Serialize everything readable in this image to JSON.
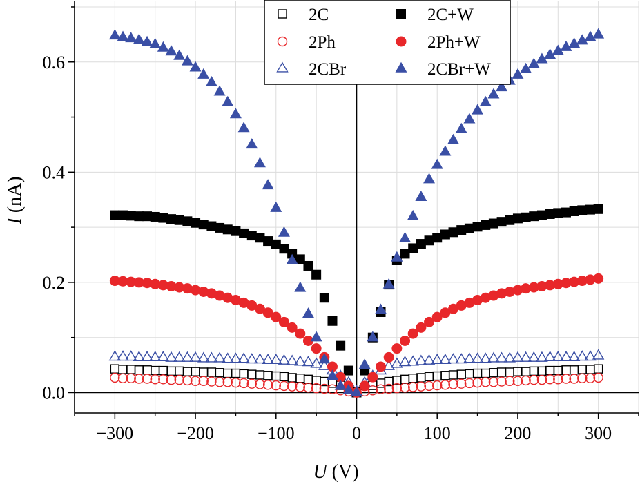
{
  "chart_data": {
    "type": "scatter",
    "title": "",
    "xlabel": {
      "symbol": "U",
      "unit": "(V)"
    },
    "ylabel": {
      "symbol": "I",
      "unit": "(nA)"
    },
    "xlim": [
      -350,
      350
    ],
    "ylim": [
      -0.037,
      0.71
    ],
    "xticks": [
      -300,
      -200,
      -100,
      0,
      100,
      200,
      300
    ],
    "xtick_labels": [
      "−300",
      "−200",
      "−100",
      "0",
      "100",
      "200",
      "300"
    ],
    "yticks": [
      0.0,
      0.2,
      0.4,
      0.6
    ],
    "ytick_labels": [
      "0.0",
      "0.2",
      "0.4",
      "0.6"
    ],
    "grid": true,
    "zero_lines": true,
    "legend_placement": "top-center",
    "series": [
      {
        "name": "2C",
        "marker": "square",
        "filled": false,
        "color": "#000000",
        "x": [
          -300,
          -290,
          -280,
          -270,
          -260,
          -250,
          -240,
          -230,
          -220,
          -210,
          -200,
          -190,
          -180,
          -170,
          -160,
          -150,
          -140,
          -130,
          -120,
          -110,
          -100,
          -90,
          -80,
          -70,
          -60,
          -50,
          -40,
          -30,
          -20,
          -10,
          0,
          10,
          20,
          30,
          40,
          50,
          60,
          70,
          80,
          90,
          100,
          110,
          120,
          130,
          140,
          150,
          160,
          170,
          180,
          190,
          200,
          210,
          220,
          230,
          240,
          250,
          260,
          270,
          280,
          290,
          300
        ],
        "y": [
          0.043,
          0.042,
          0.042,
          0.041,
          0.041,
          0.04,
          0.04,
          0.039,
          0.039,
          0.038,
          0.038,
          0.037,
          0.037,
          0.036,
          0.035,
          0.035,
          0.034,
          0.033,
          0.032,
          0.031,
          0.03,
          0.029,
          0.027,
          0.026,
          0.024,
          0.022,
          0.02,
          0.017,
          0.013,
          0.008,
          0.001,
          0.008,
          0.013,
          0.017,
          0.02,
          0.022,
          0.024,
          0.026,
          0.027,
          0.029,
          0.03,
          0.031,
          0.032,
          0.033,
          0.034,
          0.035,
          0.035,
          0.036,
          0.037,
          0.037,
          0.038,
          0.038,
          0.039,
          0.039,
          0.04,
          0.04,
          0.041,
          0.041,
          0.042,
          0.042,
          0.043
        ]
      },
      {
        "name": "2Ph",
        "marker": "circle",
        "filled": false,
        "color": "#e8272a",
        "x": [
          -300,
          -290,
          -280,
          -270,
          -260,
          -250,
          -240,
          -230,
          -220,
          -210,
          -200,
          -190,
          -180,
          -170,
          -160,
          -150,
          -140,
          -130,
          -120,
          -110,
          -100,
          -90,
          -80,
          -70,
          -60,
          -50,
          -40,
          -30,
          -20,
          -10,
          0,
          10,
          20,
          30,
          40,
          50,
          60,
          70,
          80,
          90,
          100,
          110,
          120,
          130,
          140,
          150,
          160,
          170,
          180,
          190,
          200,
          210,
          220,
          230,
          240,
          250,
          260,
          270,
          280,
          290,
          300
        ],
        "y": [
          0.027,
          0.026,
          0.026,
          0.025,
          0.025,
          0.024,
          0.024,
          0.023,
          0.023,
          0.022,
          0.021,
          0.021,
          0.02,
          0.019,
          0.019,
          0.018,
          0.017,
          0.016,
          0.015,
          0.014,
          0.013,
          0.012,
          0.011,
          0.01,
          0.009,
          0.008,
          0.007,
          0.006,
          0.004,
          0.002,
          0.0,
          0.002,
          0.004,
          0.006,
          0.007,
          0.008,
          0.009,
          0.01,
          0.011,
          0.012,
          0.013,
          0.014,
          0.015,
          0.016,
          0.017,
          0.018,
          0.019,
          0.019,
          0.02,
          0.021,
          0.021,
          0.022,
          0.023,
          0.023,
          0.024,
          0.024,
          0.025,
          0.025,
          0.026,
          0.026,
          0.027
        ]
      },
      {
        "name": "2CBr",
        "marker": "triangle",
        "filled": false,
        "color": "#3a4fa5",
        "x": [
          -300,
          -290,
          -280,
          -270,
          -260,
          -250,
          -240,
          -230,
          -220,
          -210,
          -200,
          -190,
          -180,
          -170,
          -160,
          -150,
          -140,
          -130,
          -120,
          -110,
          -100,
          -90,
          -80,
          -70,
          -60,
          -50,
          -40,
          -30,
          -20,
          -10,
          0,
          10,
          20,
          30,
          40,
          50,
          60,
          70,
          80,
          90,
          100,
          110,
          120,
          130,
          140,
          150,
          160,
          170,
          180,
          190,
          200,
          210,
          220,
          230,
          240,
          250,
          260,
          270,
          280,
          290,
          300
        ],
        "y": [
          0.065,
          0.065,
          0.065,
          0.064,
          0.064,
          0.064,
          0.064,
          0.063,
          0.063,
          0.063,
          0.063,
          0.062,
          0.062,
          0.062,
          0.061,
          0.061,
          0.061,
          0.06,
          0.06,
          0.059,
          0.059,
          0.058,
          0.057,
          0.056,
          0.055,
          0.052,
          0.048,
          0.04,
          0.03,
          0.018,
          0.002,
          0.018,
          0.03,
          0.04,
          0.048,
          0.052,
          0.055,
          0.056,
          0.057,
          0.058,
          0.059,
          0.059,
          0.06,
          0.06,
          0.061,
          0.061,
          0.061,
          0.062,
          0.062,
          0.062,
          0.063,
          0.063,
          0.063,
          0.063,
          0.064,
          0.064,
          0.064,
          0.064,
          0.065,
          0.065,
          0.067
        ]
      },
      {
        "name": "2C+W",
        "marker": "square",
        "filled": true,
        "color": "#000000",
        "x": [
          -300,
          -290,
          -280,
          -270,
          -260,
          -250,
          -240,
          -230,
          -220,
          -210,
          -200,
          -190,
          -180,
          -170,
          -160,
          -150,
          -140,
          -130,
          -120,
          -110,
          -100,
          -90,
          -80,
          -70,
          -60,
          -50,
          -40,
          -30,
          -20,
          -10,
          0,
          10,
          20,
          30,
          40,
          50,
          60,
          70,
          80,
          90,
          100,
          110,
          120,
          130,
          140,
          150,
          160,
          170,
          180,
          190,
          200,
          210,
          220,
          230,
          240,
          250,
          260,
          270,
          280,
          290,
          300
        ],
        "y": [
          0.322,
          0.322,
          0.321,
          0.32,
          0.32,
          0.319,
          0.317,
          0.315,
          0.313,
          0.311,
          0.308,
          0.305,
          0.302,
          0.299,
          0.296,
          0.293,
          0.289,
          0.285,
          0.281,
          0.275,
          0.269,
          0.261,
          0.252,
          0.242,
          0.23,
          0.214,
          0.172,
          0.13,
          0.085,
          0.04,
          0.0,
          0.04,
          0.1,
          0.146,
          0.196,
          0.24,
          0.252,
          0.262,
          0.27,
          0.276,
          0.281,
          0.287,
          0.291,
          0.295,
          0.298,
          0.301,
          0.304,
          0.307,
          0.31,
          0.313,
          0.316,
          0.318,
          0.32,
          0.322,
          0.324,
          0.326,
          0.327,
          0.329,
          0.331,
          0.332,
          0.333
        ]
      },
      {
        "name": "2Ph+W",
        "marker": "circle",
        "filled": true,
        "color": "#e8272a",
        "x": [
          -300,
          -290,
          -280,
          -270,
          -260,
          -250,
          -240,
          -230,
          -220,
          -210,
          -200,
          -190,
          -180,
          -170,
          -160,
          -150,
          -140,
          -130,
          -120,
          -110,
          -100,
          -90,
          -80,
          -70,
          -60,
          -50,
          -40,
          -30,
          -20,
          -10,
          0,
          10,
          20,
          30,
          40,
          50,
          60,
          70,
          80,
          90,
          100,
          110,
          120,
          130,
          140,
          150,
          160,
          170,
          180,
          190,
          200,
          210,
          220,
          230,
          240,
          250,
          260,
          270,
          280,
          290,
          300
        ],
        "y": [
          0.203,
          0.202,
          0.201,
          0.2,
          0.199,
          0.197,
          0.195,
          0.193,
          0.191,
          0.189,
          0.186,
          0.183,
          0.18,
          0.176,
          0.172,
          0.168,
          0.163,
          0.158,
          0.152,
          0.145,
          0.137,
          0.128,
          0.118,
          0.107,
          0.094,
          0.08,
          0.064,
          0.047,
          0.028,
          0.012,
          0.0,
          0.012,
          0.028,
          0.047,
          0.064,
          0.08,
          0.094,
          0.107,
          0.118,
          0.128,
          0.137,
          0.145,
          0.152,
          0.158,
          0.163,
          0.168,
          0.172,
          0.176,
          0.18,
          0.183,
          0.186,
          0.189,
          0.191,
          0.193,
          0.195,
          0.197,
          0.199,
          0.201,
          0.203,
          0.205,
          0.207
        ]
      },
      {
        "name": "2CBr+W",
        "marker": "triangle",
        "filled": true,
        "color": "#3a4fa5",
        "x": [
          -300,
          -290,
          -280,
          -270,
          -260,
          -250,
          -240,
          -230,
          -220,
          -210,
          -200,
          -190,
          -180,
          -170,
          -160,
          -150,
          -140,
          -130,
          -120,
          -110,
          -100,
          -90,
          -80,
          -70,
          -60,
          -50,
          -40,
          -30,
          -20,
          -10,
          0,
          10,
          20,
          30,
          40,
          50,
          60,
          70,
          80,
          90,
          100,
          110,
          120,
          130,
          140,
          150,
          160,
          170,
          180,
          190,
          200,
          210,
          220,
          230,
          240,
          250,
          260,
          270,
          280,
          290,
          300
        ],
        "y": [
          0.648,
          0.645,
          0.643,
          0.64,
          0.636,
          0.632,
          0.626,
          0.619,
          0.611,
          0.601,
          0.59,
          0.577,
          0.563,
          0.546,
          0.527,
          0.505,
          0.48,
          0.45,
          0.416,
          0.376,
          0.335,
          0.29,
          0.24,
          0.19,
          0.143,
          0.1,
          0.06,
          0.03,
          0.012,
          0.004,
          0.0,
          0.05,
          0.1,
          0.15,
          0.196,
          0.245,
          0.28,
          0.32,
          0.355,
          0.387,
          0.413,
          0.437,
          0.458,
          0.478,
          0.496,
          0.512,
          0.527,
          0.541,
          0.554,
          0.566,
          0.577,
          0.587,
          0.596,
          0.605,
          0.613,
          0.62,
          0.627,
          0.633,
          0.639,
          0.645,
          0.65
        ]
      }
    ]
  }
}
